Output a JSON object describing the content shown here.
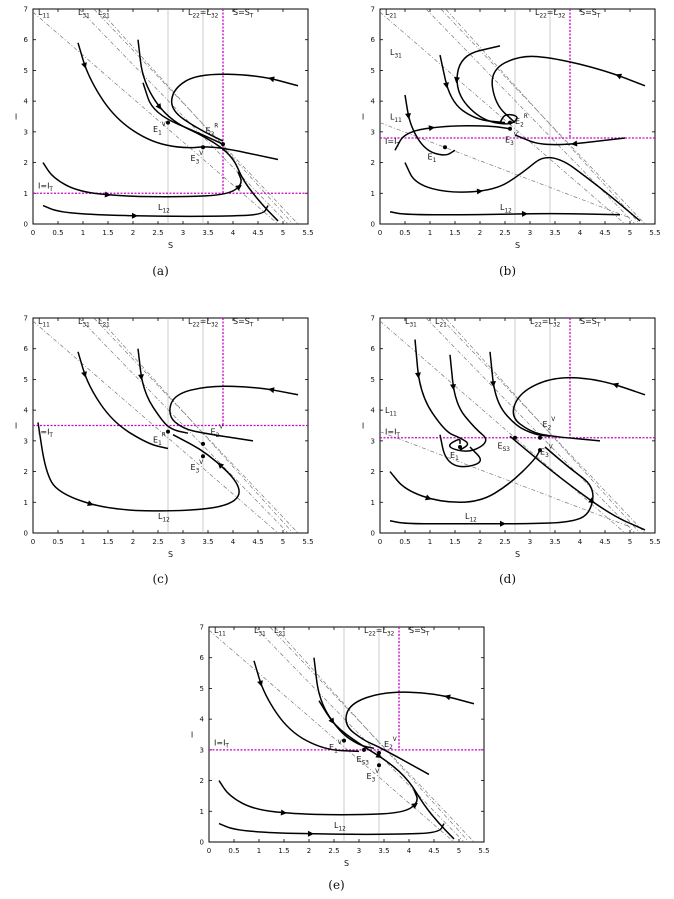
{
  "axis_common": {
    "xlabel": "S",
    "ylabel": "I",
    "xlim": [
      0,
      5.5
    ],
    "ylim": [
      0,
      7
    ],
    "xticks": [
      "0",
      "0.5",
      "1",
      "1.5",
      "2",
      "2.5",
      "3",
      "3.5",
      "4",
      "4.5",
      "5",
      "5.5"
    ],
    "yticks": [
      "0",
      "1",
      "2",
      "3",
      "4",
      "5",
      "6",
      "7"
    ],
    "threshold_color": "#d000d0",
    "curve_color": "#000000",
    "line_color": "#777777"
  },
  "chart_data": [
    {
      "type": "line",
      "caption": "(a)",
      "S_T": 3.8,
      "I_T": 1.0,
      "labels": {
        "L11": "L11",
        "L31": "L31",
        "L21": "L21",
        "L12": "L12",
        "L22_L32": "L22=L32",
        "S_ST": "S=ST",
        "I_IT": "I=IT",
        "E1V": "E1V",
        "E2R": "E2R",
        "E3V": "E3V"
      },
      "equilibria": [
        {
          "name": "E1V",
          "S": 2.7,
          "I": 3.3
        },
        {
          "name": "E2R",
          "S": 3.8,
          "I": 2.6
        },
        {
          "name": "E3V",
          "S": 3.4,
          "I": 2.5
        }
      ]
    },
    {
      "type": "line",
      "caption": "(b)",
      "S_T": 3.8,
      "I_T": 2.8,
      "labels": {
        "L21": "L21",
        "L31": "L31",
        "L11": "L11",
        "L12": "L12",
        "L22_L32": "L22=L32",
        "S_ST": "S=ST",
        "I_IT": "I=IT",
        "E2R": "E2R",
        "E3V": "E3V",
        "E1": "E1"
      },
      "equilibria": [
        {
          "name": "E2R",
          "S": 2.6,
          "I": 3.3
        },
        {
          "name": "E3V",
          "S": 2.6,
          "I": 3.1
        },
        {
          "name": "E1",
          "S": 1.3,
          "I": 2.5
        }
      ]
    },
    {
      "type": "line",
      "caption": "(c)",
      "S_T": 3.8,
      "I_T": 3.5,
      "labels": {
        "L11": "L11",
        "L31": "L31",
        "L21": "L21",
        "L12": "L12",
        "L22_L32": "L22=L32",
        "S_ST": "S=ST",
        "I_IT": "I=IT",
        "E1R": "E1R",
        "E2V": "E2V",
        "E3V": "E3V"
      },
      "equilibria": [
        {
          "name": "E1R",
          "S": 2.7,
          "I": 3.3
        },
        {
          "name": "E2V",
          "S": 3.4,
          "I": 2.9
        },
        {
          "name": "E3V",
          "S": 3.4,
          "I": 2.5
        }
      ]
    },
    {
      "type": "line",
      "caption": "(d)",
      "S_T": 3.8,
      "I_T": 3.1,
      "labels": {
        "L31": "L31",
        "L21": "L21",
        "L11": "L11",
        "L12": "L12",
        "L22_L32": "L22=L32",
        "S_ST": "S=ST",
        "I_IT": "I=IT",
        "E2V": "E2V",
        "ES3": "ES3",
        "E3V": "E3V",
        "E1": "E1"
      },
      "equilibria": [
        {
          "name": "E2V",
          "S": 3.2,
          "I": 3.1
        },
        {
          "name": "ES3",
          "S": 2.7,
          "I": 3.1
        },
        {
          "name": "E3V",
          "S": 3.2,
          "I": 2.7
        },
        {
          "name": "E1",
          "S": 1.6,
          "I": 2.8
        }
      ]
    },
    {
      "type": "line",
      "caption": "(e)",
      "S_T": 3.8,
      "I_T": 3.0,
      "labels": {
        "L11": "L11",
        "L31": "L31",
        "L21": "L21",
        "L12": "L12",
        "L22_L32": "L22=L32",
        "S_ST": "S=ST",
        "I_IT": "I=IT",
        "E1V": "E1V",
        "ES3": "ES3",
        "E2V": "E2V",
        "E3V": "E3V"
      },
      "equilibria": [
        {
          "name": "E1V",
          "S": 2.7,
          "I": 3.3
        },
        {
          "name": "ES3",
          "S": 3.1,
          "I": 3.0
        },
        {
          "name": "E2V",
          "S": 3.4,
          "I": 2.9
        },
        {
          "name": "E3V",
          "S": 3.4,
          "I": 2.5
        }
      ]
    }
  ]
}
